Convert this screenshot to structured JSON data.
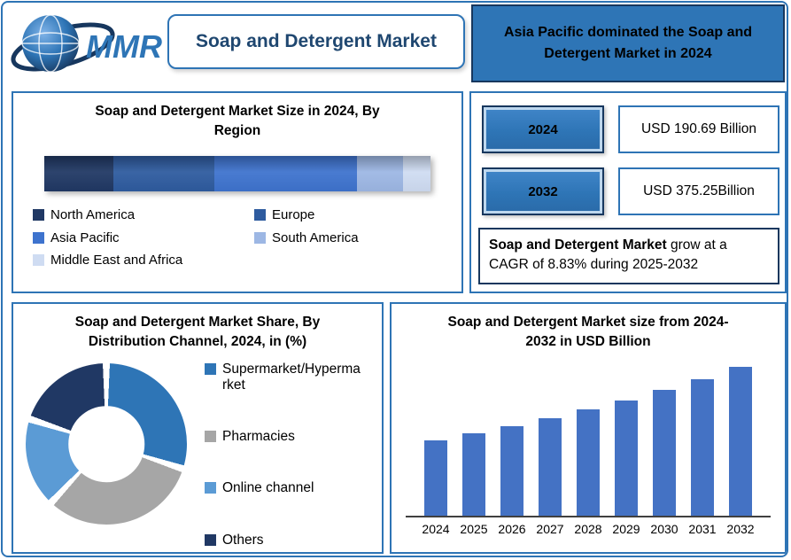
{
  "header": {
    "logo_text": "MMR",
    "title": "Soap and Detergent Market",
    "highlight": "Asia Pacific dominated the Soap and Detergent Market in 2024"
  },
  "stats_panel": {
    "rows": [
      {
        "year": "2024",
        "value": "USD 190.69 Billion"
      },
      {
        "year": "2032",
        "value": "USD 375.25Billion"
      }
    ],
    "cagr_bold": "Soap and Detergent Market",
    "cagr_rest": " grow at a CAGR of 8.83% during 2025-2032"
  },
  "colors": {
    "panel_border": "#2E74B5",
    "dark_navy": "#17375E",
    "header_fill": "#2E75B6",
    "bar_blue": "#4472C4"
  },
  "chart_data": [
    {
      "type": "bar",
      "subtype": "stacked-horizontal-single-bar",
      "title": "Soap and Detergent Market Size in 2024, By Region",
      "categories": [
        "North America",
        "Europe",
        "Asia Pacific",
        "South America",
        "Middle East and Africa"
      ],
      "values": [
        18,
        26,
        37,
        12,
        7
      ],
      "unit": "% share (estimated from segment widths)",
      "colors": [
        "#203864",
        "#2E5B9F",
        "#3E73CE",
        "#9DB7E4",
        "#CFDCF2"
      ],
      "legend_position": "bottom"
    },
    {
      "type": "pie",
      "subtype": "donut",
      "title": "Soap and Detergent Market Share, By Distribution Channel, 2024, in (%)",
      "categories": [
        "Supermarket/Hypermarket",
        "Pharmacies",
        "Online channel",
        "Others"
      ],
      "values": [
        30,
        32,
        18,
        20
      ],
      "unit": "% share (estimated from arc angles)",
      "colors": [
        "#2E75B6",
        "#A6A6A6",
        "#5B9BD5",
        "#203864"
      ],
      "legend_position": "right"
    },
    {
      "type": "bar",
      "title": "Soap and Detergent Market size from 2024-2032 in USD Billion",
      "categories": [
        "2024",
        "2025",
        "2026",
        "2027",
        "2028",
        "2029",
        "2030",
        "2031",
        "2032"
      ],
      "values": [
        190.69,
        207.5,
        225.8,
        245.8,
        267.5,
        291.1,
        316.8,
        344.8,
        375.25
      ],
      "xlabel": "",
      "ylabel": "USD Billion",
      "ylim": [
        0,
        400
      ],
      "grid": false,
      "bar_color": "#4472C4",
      "note": "2024 and 2032 values shown in text; intermediate years estimated via 8.83% CAGR"
    }
  ]
}
